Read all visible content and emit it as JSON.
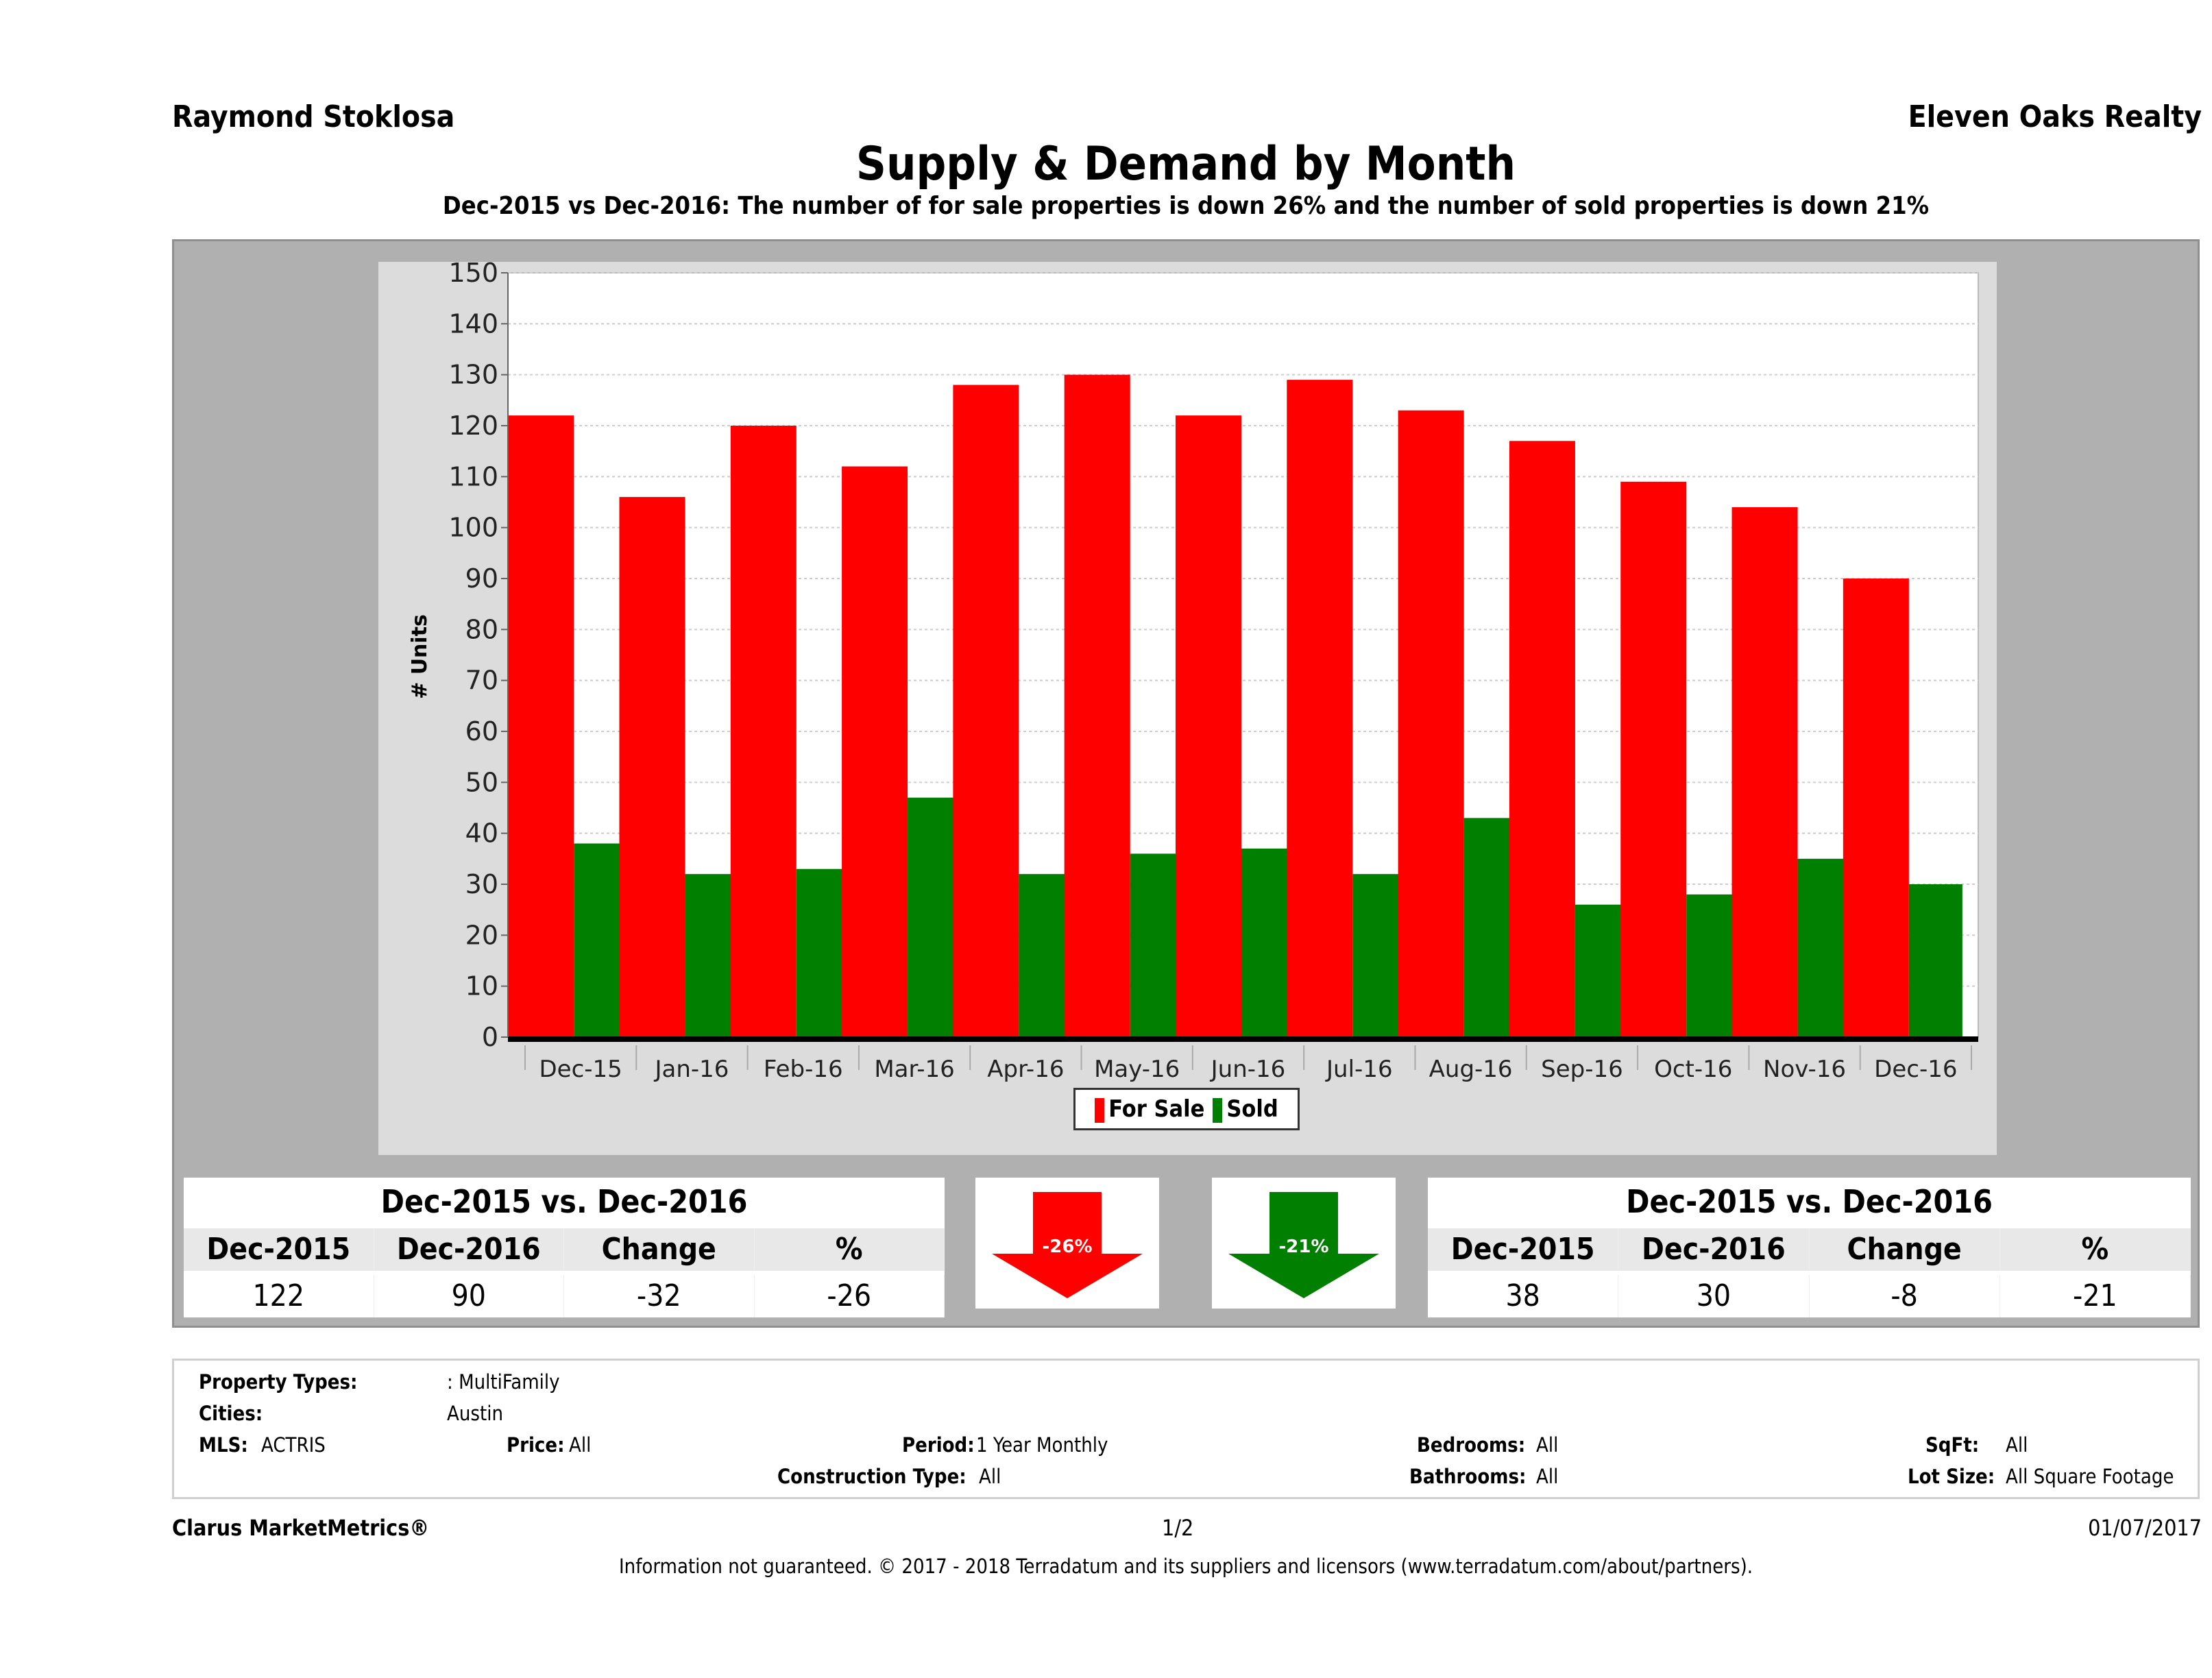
{
  "header": {
    "agent": "Raymond Stoklosa",
    "brokerage": "Eleven Oaks Realty",
    "title": "Supply & Demand by Month",
    "subtitle": "Dec-2015 vs Dec-2016: The number of for sale properties is down 26% and the number of sold properties is down 21%"
  },
  "chart_data": {
    "type": "bar",
    "title": "Supply & Demand by Month",
    "xlabel": "",
    "ylabel": "# Units",
    "ylim": [
      0,
      150
    ],
    "yticks": [
      0,
      10,
      20,
      30,
      40,
      50,
      60,
      70,
      80,
      90,
      100,
      110,
      120,
      130,
      140,
      150
    ],
    "grid": true,
    "legend_position": "bottom-center",
    "categories": [
      "Dec-15",
      "Jan-16",
      "Feb-16",
      "Mar-16",
      "Apr-16",
      "May-16",
      "Jun-16",
      "Jul-16",
      "Aug-16",
      "Sep-16",
      "Oct-16",
      "Nov-16",
      "Dec-16"
    ],
    "series": [
      {
        "name": "For Sale",
        "color": "#ff0000",
        "values": [
          122,
          106,
          120,
          112,
          128,
          130,
          122,
          129,
          123,
          117,
          109,
          104,
          90
        ]
      },
      {
        "name": "Sold",
        "color": "#007f00",
        "values": [
          38,
          32,
          33,
          47,
          32,
          36,
          37,
          32,
          43,
          26,
          28,
          35,
          30
        ]
      }
    ]
  },
  "summary_for_sale": {
    "heading": "Dec-2015 vs. Dec-2016",
    "columns": [
      "Dec-2015",
      "Dec-2016",
      "Change",
      "%"
    ],
    "values": [
      "122",
      "90",
      "-32",
      "-26"
    ],
    "arrow_label": "-26%",
    "arrow_color": "#ff0000"
  },
  "summary_sold": {
    "heading": "Dec-2015 vs. Dec-2016",
    "columns": [
      "Dec-2015",
      "Dec-2016",
      "Change",
      "%"
    ],
    "values": [
      "38",
      "30",
      "-8",
      "-21"
    ],
    "arrow_label": "-21%",
    "arrow_color": "#007f00"
  },
  "criteria": {
    "property_types_label": "Property Types:",
    "property_types_value": ": MultiFamily",
    "cities_label": "Cities:",
    "cities_value": "Austin",
    "mls_label": "MLS:",
    "mls_value": "ACTRIS",
    "price_label": "Price:",
    "price_value": "All",
    "period_label": "Period:",
    "period_value": "1 Year Monthly",
    "construction_label": "Construction Type:",
    "construction_value": "All",
    "bedrooms_label": "Bedrooms:",
    "bedrooms_value": "All",
    "bathrooms_label": "Bathrooms:",
    "bathrooms_value": "All",
    "sqft_label": "SqFt:",
    "sqft_value": "All",
    "lotsize_label": "Lot Size:",
    "lotsize_value": "All Square Footage"
  },
  "footer": {
    "product": "Clarus MarketMetrics®",
    "page": "1/2",
    "date": "01/07/2017",
    "disclaimer": "Information not guaranteed. © 2017 - 2018 Terradatum and its suppliers and licensors (www.terradatum.com/about/partners)."
  }
}
